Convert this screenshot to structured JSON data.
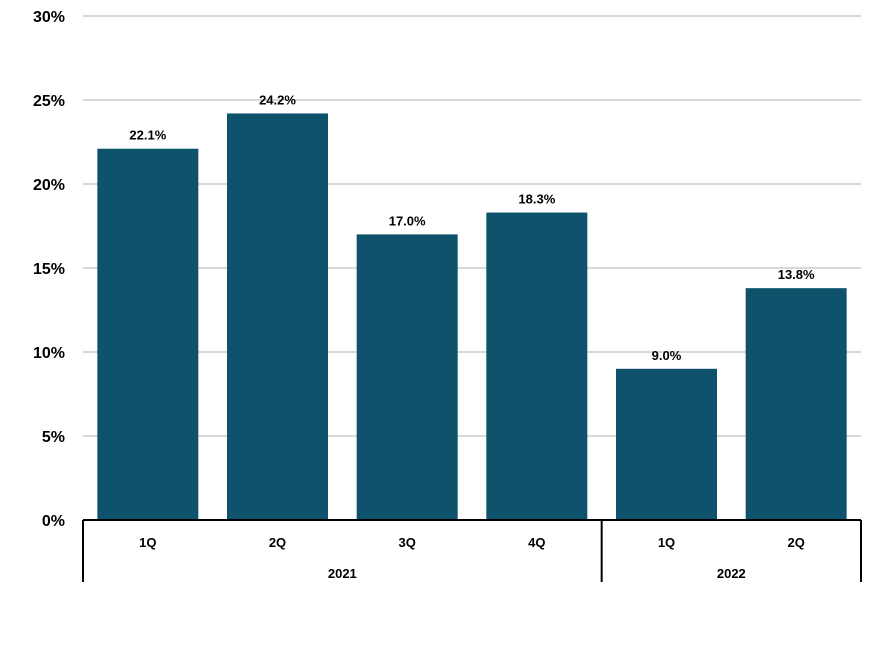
{
  "chart_data": {
    "type": "bar",
    "title": "",
    "xlabel": "",
    "ylabel": "",
    "categories": [
      "1Q",
      "2Q",
      "3Q",
      "4Q",
      "1Q",
      "2Q"
    ],
    "groups": [
      {
        "label": "2021",
        "count": 4
      },
      {
        "label": "2022",
        "count": 2
      }
    ],
    "values": [
      22.1,
      24.2,
      17.0,
      18.3,
      9.0,
      13.8
    ],
    "data_labels": [
      "22.1%",
      "24.2%",
      "17.0%",
      "18.3%",
      "9.0%",
      "13.8%"
    ],
    "ylim": [
      0,
      30
    ],
    "yticks": [
      0,
      5,
      10,
      15,
      20,
      25,
      30
    ],
    "ytick_labels": [
      "0%",
      "5%",
      "10%",
      "15%",
      "20%",
      "25%",
      "30%"
    ],
    "grid": true,
    "legend": "none",
    "bar_color": "#0e526b",
    "grid_color": "#b0b0b0"
  }
}
